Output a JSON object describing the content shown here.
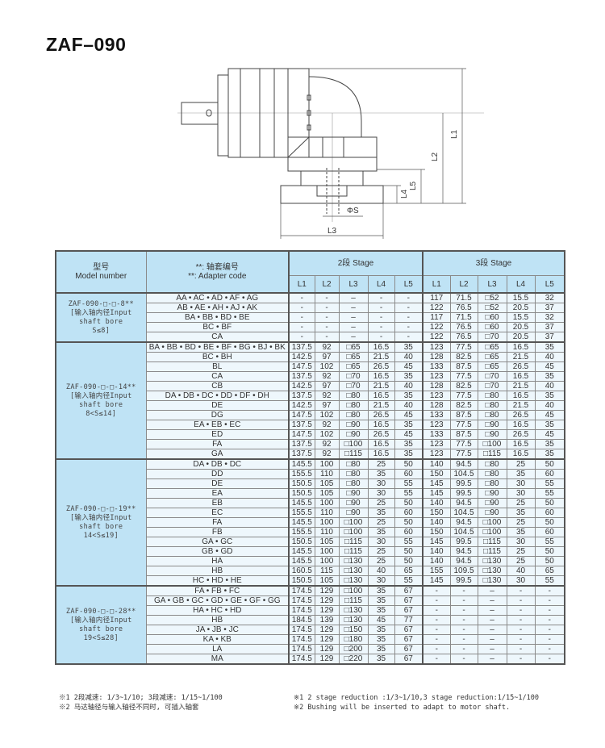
{
  "title": "ZAF–090",
  "drawing": {
    "labels": {
      "L1": "L1",
      "L2": "L2",
      "L3": "L3",
      "L4": "L4",
      "L5": "L5",
      "S": "ΦS"
    }
  },
  "table": {
    "header": {
      "model_cn": "型号",
      "model_en": "Model number",
      "adapter_cn": "**: 轴套编号",
      "adapter_en": "**:  Adapter code",
      "stage2": "2段 Stage",
      "stage3": "3段 Stage",
      "cols": [
        "L1",
        "L2",
        "L3",
        "L4",
        "L5"
      ]
    },
    "groups": [
      {
        "model": [
          "ZAF-090-□-□-8**",
          "[输入轴内径Input",
          "shaft bore",
          "S≤8]"
        ],
        "rows": [
          {
            "code": "AA • AC • AD • AF • AG",
            "s2": [
              "-",
              "-",
              "–",
              "-",
              "-"
            ],
            "s3": [
              "117",
              "71.5",
              "□52",
              "15.5",
              "32"
            ]
          },
          {
            "code": "AB • AE • AH • AJ • AK",
            "s2": [
              "-",
              "-",
              "–",
              "-",
              "-"
            ],
            "s3": [
              "122",
              "76.5",
              "□52",
              "20.5",
              "37"
            ]
          },
          {
            "code": "BA • BB • BD • BE",
            "s2": [
              "-",
              "-",
              "–",
              "-",
              "-"
            ],
            "s3": [
              "117",
              "71.5",
              "□60",
              "15.5",
              "32"
            ]
          },
          {
            "code": "BC • BF",
            "s2": [
              "-",
              "-",
              "–",
              "-",
              "-"
            ],
            "s3": [
              "122",
              "76.5",
              "□60",
              "20.5",
              "37"
            ]
          },
          {
            "code": "CA",
            "s2": [
              "-",
              "-",
              "–",
              "-",
              "-"
            ],
            "s3": [
              "122",
              "76.5",
              "□70",
              "20.5",
              "37"
            ]
          }
        ]
      },
      {
        "model": [
          "ZAF-090-□-□-14**",
          "[输入轴内径Input",
          "shaft bore",
          "8<S≤14]"
        ],
        "rows": [
          {
            "code": "BA • BB • BD • BE • BF • BG • BJ • BK",
            "s2": [
              "137.5",
              "92",
              "□65",
              "16.5",
              "35"
            ],
            "s3": [
              "123",
              "77.5",
              "□65",
              "16.5",
              "35"
            ]
          },
          {
            "code": "BC • BH",
            "s2": [
              "142.5",
              "97",
              "□65",
              "21.5",
              "40"
            ],
            "s3": [
              "128",
              "82.5",
              "□65",
              "21.5",
              "40"
            ]
          },
          {
            "code": "BL",
            "s2": [
              "147.5",
              "102",
              "□65",
              "26.5",
              "45"
            ],
            "s3": [
              "133",
              "87.5",
              "□65",
              "26.5",
              "45"
            ]
          },
          {
            "code": "CA",
            "s2": [
              "137.5",
              "92",
              "□70",
              "16.5",
              "35"
            ],
            "s3": [
              "123",
              "77.5",
              "□70",
              "16.5",
              "35"
            ]
          },
          {
            "code": "CB",
            "s2": [
              "142.5",
              "97",
              "□70",
              "21.5",
              "40"
            ],
            "s3": [
              "128",
              "82.5",
              "□70",
              "21.5",
              "40"
            ]
          },
          {
            "code": "DA • DB • DC • DD • DF • DH",
            "s2": [
              "137.5",
              "92",
              "□80",
              "16.5",
              "35"
            ],
            "s3": [
              "123",
              "77.5",
              "□80",
              "16.5",
              "35"
            ]
          },
          {
            "code": "DE",
            "s2": [
              "142.5",
              "97",
              "□80",
              "21.5",
              "40"
            ],
            "s3": [
              "128",
              "82.5",
              "□80",
              "21.5",
              "40"
            ]
          },
          {
            "code": "DG",
            "s2": [
              "147.5",
              "102",
              "□80",
              "26.5",
              "45"
            ],
            "s3": [
              "133",
              "87.5",
              "□80",
              "26.5",
              "45"
            ]
          },
          {
            "code": "EA • EB • EC",
            "s2": [
              "137.5",
              "92",
              "□90",
              "16.5",
              "35"
            ],
            "s3": [
              "123",
              "77.5",
              "□90",
              "16.5",
              "35"
            ]
          },
          {
            "code": "ED",
            "s2": [
              "147.5",
              "102",
              "□90",
              "26.5",
              "45"
            ],
            "s3": [
              "133",
              "87.5",
              "□90",
              "26.5",
              "45"
            ]
          },
          {
            "code": "FA",
            "s2": [
              "137.5",
              "92",
              "□100",
              "16.5",
              "35"
            ],
            "s3": [
              "123",
              "77.5",
              "□100",
              "16.5",
              "35"
            ]
          },
          {
            "code": "GA",
            "s2": [
              "137.5",
              "92",
              "□115",
              "16.5",
              "35"
            ],
            "s3": [
              "123",
              "77.5",
              "□115",
              "16.5",
              "35"
            ]
          }
        ]
      },
      {
        "model": [
          "ZAF-090-□-□-19**",
          "[输入轴内径Input",
          "shaft bore",
          "14<S≤19]"
        ],
        "rows": [
          {
            "code": "DA • DB • DC",
            "s2": [
              "145.5",
              "100",
              "□80",
              "25",
              "50"
            ],
            "s3": [
              "140",
              "94.5",
              "□80",
              "25",
              "50"
            ]
          },
          {
            "code": "DD",
            "s2": [
              "155.5",
              "110",
              "□80",
              "35",
              "60"
            ],
            "s3": [
              "150",
              "104.5",
              "□80",
              "35",
              "60"
            ]
          },
          {
            "code": "DE",
            "s2": [
              "150.5",
              "105",
              "□80",
              "30",
              "55"
            ],
            "s3": [
              "145",
              "99.5",
              "□80",
              "30",
              "55"
            ]
          },
          {
            "code": "EA",
            "s2": [
              "150.5",
              "105",
              "□90",
              "30",
              "55"
            ],
            "s3": [
              "145",
              "99.5",
              "□90",
              "30",
              "55"
            ]
          },
          {
            "code": "EB",
            "s2": [
              "145.5",
              "100",
              "□90",
              "25",
              "50"
            ],
            "s3": [
              "140",
              "94.5",
              "□90",
              "25",
              "50"
            ]
          },
          {
            "code": "EC",
            "s2": [
              "155.5",
              "110",
              "□90",
              "35",
              "60"
            ],
            "s3": [
              "150",
              "104.5",
              "□90",
              "35",
              "60"
            ]
          },
          {
            "code": "FA",
            "s2": [
              "145.5",
              "100",
              "□100",
              "25",
              "50"
            ],
            "s3": [
              "140",
              "94.5",
              "□100",
              "25",
              "50"
            ]
          },
          {
            "code": "FB",
            "s2": [
              "155.5",
              "110",
              "□100",
              "35",
              "60"
            ],
            "s3": [
              "150",
              "104.5",
              "□100",
              "35",
              "60"
            ]
          },
          {
            "code": "GA • GC",
            "s2": [
              "150.5",
              "105",
              "□115",
              "30",
              "55"
            ],
            "s3": [
              "145",
              "99.5",
              "□115",
              "30",
              "55"
            ]
          },
          {
            "code": "GB • GD",
            "s2": [
              "145.5",
              "100",
              "□115",
              "25",
              "50"
            ],
            "s3": [
              "140",
              "94.5",
              "□115",
              "25",
              "50"
            ]
          },
          {
            "code": "HA",
            "s2": [
              "145.5",
              "100",
              "□130",
              "25",
              "50"
            ],
            "s3": [
              "140",
              "94.5",
              "□130",
              "25",
              "50"
            ]
          },
          {
            "code": "HB",
            "s2": [
              "160.5",
              "115",
              "□130",
              "40",
              "65"
            ],
            "s3": [
              "155",
              "109.5",
              "□130",
              "40",
              "65"
            ]
          },
          {
            "code": "HC • HD • HE",
            "s2": [
              "150.5",
              "105",
              "□130",
              "30",
              "55"
            ],
            "s3": [
              "145",
              "99.5",
              "□130",
              "30",
              "55"
            ]
          }
        ]
      },
      {
        "model": [
          "ZAF-090-□-□-28**",
          "[输入轴内径Input",
          "shaft bore",
          "19<S≤28]"
        ],
        "rows": [
          {
            "code": "FA • FB • FC",
            "s2": [
              "174.5",
              "129",
              "□100",
              "35",
              "67"
            ],
            "s3": [
              "-",
              "-",
              "–",
              "-",
              "-"
            ]
          },
          {
            "code": "GA • GB • GC • GD • GE • GF • GG",
            "s2": [
              "174.5",
              "129",
              "□115",
              "35",
              "67"
            ],
            "s3": [
              "-",
              "-",
              "–",
              "-",
              "-"
            ]
          },
          {
            "code": "HA • HC • HD",
            "s2": [
              "174.5",
              "129",
              "□130",
              "35",
              "67"
            ],
            "s3": [
              "-",
              "-",
              "–",
              "-",
              "-"
            ]
          },
          {
            "code": "HB",
            "s2": [
              "184.5",
              "139",
              "□130",
              "45",
              "77"
            ],
            "s3": [
              "-",
              "-",
              "–",
              "-",
              "-"
            ]
          },
          {
            "code": "JA • JB • JC",
            "s2": [
              "174.5",
              "129",
              "□150",
              "35",
              "67"
            ],
            "s3": [
              "-",
              "-",
              "–",
              "-",
              "-"
            ]
          },
          {
            "code": "KA • KB",
            "s2": [
              "174.5",
              "129",
              "□180",
              "35",
              "67"
            ],
            "s3": [
              "-",
              "-",
              "–",
              "-",
              "-"
            ]
          },
          {
            "code": "LA",
            "s2": [
              "174.5",
              "129",
              "□200",
              "35",
              "67"
            ],
            "s3": [
              "-",
              "-",
              "–",
              "-",
              "-"
            ]
          },
          {
            "code": "MA",
            "s2": [
              "174.5",
              "129",
              "□220",
              "35",
              "67"
            ],
            "s3": [
              "-",
              "-",
              "–",
              "-",
              "-"
            ]
          }
        ]
      }
    ]
  },
  "notes": {
    "cn": [
      "※1 2段减速: 1/3~1/10; 3段减速: 1/15~1/100",
      "※2 马达轴径与输入轴径不同时, 可插入轴套"
    ],
    "en": [
      "※1 2 stage reduction :1/3~1/10,3 stage reduction:1/15~1/100",
      "※2 Bushing will be inserted to adapt to motor shaft."
    ]
  }
}
